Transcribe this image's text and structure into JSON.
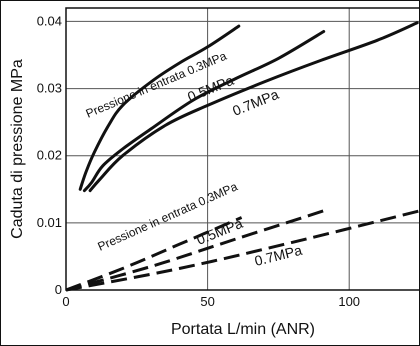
{
  "chart_data": {
    "type": "line",
    "xlabel": "Portata L/min (ANR)",
    "ylabel": "Caduta di pressione MPa",
    "xlim": [
      0,
      125
    ],
    "ylim": [
      0,
      0.042
    ],
    "x_ticks": [
      "0",
      "50",
      "100"
    ],
    "y_ticks": [
      "0",
      "0.01",
      "0.02",
      "0.03",
      "0.04"
    ],
    "grid": true,
    "series": [
      {
        "name": "0.3MPa",
        "style": "solid",
        "x": [
          5,
          7,
          10,
          15,
          20,
          30,
          40,
          50,
          61
        ],
        "y": [
          0.015,
          0.0175,
          0.0205,
          0.0245,
          0.0275,
          0.031,
          0.0338,
          0.0362,
          0.0393
        ]
      },
      {
        "name": "0.5MPa",
        "style": "solid",
        "x": [
          6.5,
          9,
          13,
          20,
          30,
          45,
          60,
          75,
          91
        ],
        "y": [
          0.0148,
          0.016,
          0.0185,
          0.021,
          0.024,
          0.0283,
          0.0315,
          0.0345,
          0.0385
        ]
      },
      {
        "name": "0.7MPa",
        "style": "solid",
        "x": [
          8.5,
          12,
          20,
          35,
          50,
          70,
          90,
          110,
          124
        ],
        "y": [
          0.0148,
          0.0165,
          0.02,
          0.0245,
          0.0275,
          0.031,
          0.0342,
          0.0372,
          0.0398
        ]
      },
      {
        "name": "0.3MPa",
        "style": "dashed",
        "x": [
          0,
          20,
          40,
          62
        ],
        "y": [
          0,
          0.0032,
          0.0068,
          0.0108
        ]
      },
      {
        "name": "0.5MPa",
        "style": "dashed",
        "x": [
          0,
          30,
          60,
          91
        ],
        "y": [
          0,
          0.0035,
          0.0076,
          0.0118
        ]
      },
      {
        "name": "0.7MPa",
        "style": "dashed",
        "x": [
          0,
          40,
          80,
          125
        ],
        "y": [
          0,
          0.0032,
          0.0071,
          0.0118
        ]
      }
    ],
    "annotations": [
      {
        "text": "Pressione in entrata 0.3MPa",
        "group": "solid"
      },
      {
        "text": "0.5MPa",
        "group": "solid"
      },
      {
        "text": "0.7MPa",
        "group": "solid"
      },
      {
        "text": "Pressione in entrata 0.3MPa",
        "group": "dashed"
      },
      {
        "text": "0.5MPa",
        "group": "dashed"
      },
      {
        "text": "0.7MPa",
        "group": "dashed"
      }
    ],
    "colors": {
      "line": "#111111",
      "grid": "#555555",
      "background": "#ffffff"
    }
  }
}
